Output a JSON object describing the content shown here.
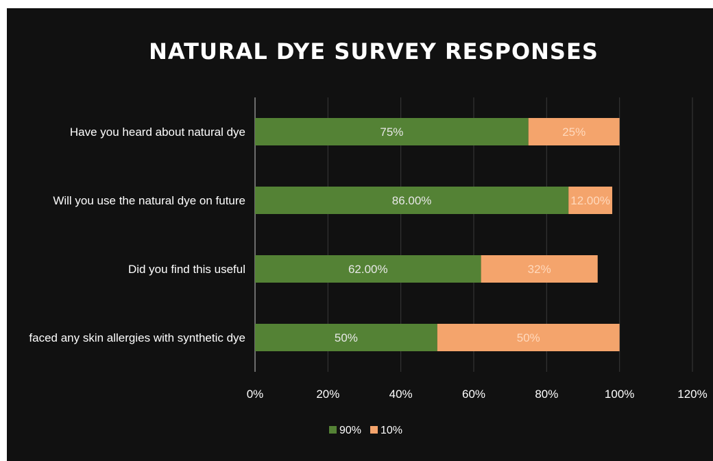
{
  "chart_data": {
    "type": "bar",
    "orientation": "horizontal",
    "stacked": true,
    "title": "NATURAL DYE SURVEY RESPONSES",
    "categories": [
      "Have you heard about natural dye",
      "Will you use the natural dye on future",
      "Did you find this useful",
      "faced any skin allergies with synthetic dye"
    ],
    "series": [
      {
        "name": "90%",
        "color": "#548235",
        "values": [
          75,
          86,
          62,
          50
        ],
        "labels": [
          "75%",
          "86.00%",
          "62.00%",
          "50%"
        ]
      },
      {
        "name": "10%",
        "color": "#F4A46C",
        "values": [
          25,
          12,
          32,
          50
        ],
        "labels": [
          "25%",
          "12.00%",
          "32%",
          "50%"
        ]
      }
    ],
    "xlim": [
      0,
      120
    ],
    "xticks": [
      "0%",
      "20%",
      "40%",
      "60%",
      "80%",
      "100%",
      "120%"
    ],
    "grid": true,
    "legend": "bottom",
    "background": "#111111",
    "text_color": "#ffffff",
    "grid_color": "#3a3a3a",
    "axis_color": "#8c8c8c"
  }
}
